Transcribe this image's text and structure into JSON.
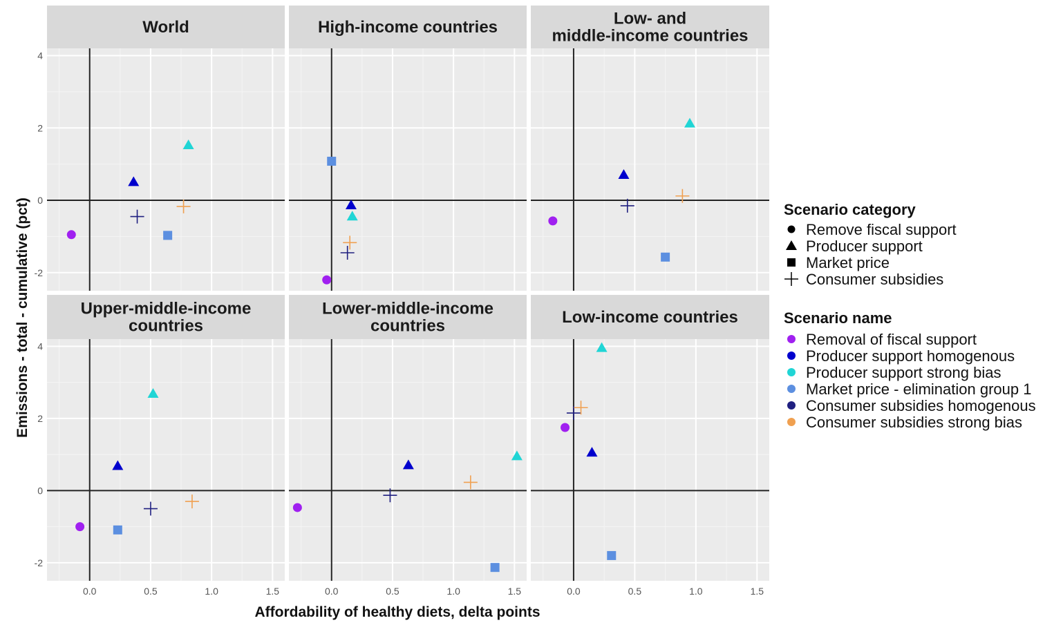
{
  "chart_data": {
    "type": "scatter",
    "xlabel": "Affordability of healthy diets, delta points",
    "ylabel": "Emissions - total - cumulative (pct)",
    "xlim": [
      -0.35,
      1.6
    ],
    "ylim": [
      -2.5,
      4.2
    ],
    "x_ticks": [
      "0.0",
      "0.5",
      "1.0",
      "1.5"
    ],
    "y_ticks": [
      "4",
      "2",
      "0",
      "-2"
    ],
    "grid": true,
    "legend_position": "right",
    "legend": {
      "category_title": "Scenario category",
      "categories": [
        {
          "label": "Remove fiscal support",
          "shape": "circle"
        },
        {
          "label": "Producer support",
          "shape": "triangle"
        },
        {
          "label": "Market price",
          "shape": "square"
        },
        {
          "label": "Consumer subsidies",
          "shape": "plus"
        }
      ],
      "name_title": "Scenario name",
      "names": [
        {
          "label": "Removal of fiscal support",
          "color": "#a020f0"
        },
        {
          "label": "Producer support homogenous",
          "color": "#0000cd"
        },
        {
          "label": "Producer support strong bias",
          "color": "#20d5d5"
        },
        {
          "label": "Market price - elimination group 1",
          "color": "#5c8fe0"
        },
        {
          "label": "Consumer subsidies homogenous",
          "color": "#1f1f80"
        },
        {
          "label": "Consumer subsidies strong bias",
          "color": "#f0a050"
        }
      ]
    },
    "panels": [
      {
        "title_lines": [
          "World"
        ],
        "points": [
          {
            "s": 0,
            "x": -0.15,
            "y": -0.95
          },
          {
            "s": 1,
            "x": 0.36,
            "y": 0.5
          },
          {
            "s": 2,
            "x": 0.81,
            "y": 1.52
          },
          {
            "s": 3,
            "x": 0.64,
            "y": -0.97
          },
          {
            "s": 4,
            "x": 0.39,
            "y": -0.45
          },
          {
            "s": 5,
            "x": 0.77,
            "y": -0.17
          }
        ]
      },
      {
        "title_lines": [
          "High-income countries"
        ],
        "points": [
          {
            "s": 0,
            "x": -0.04,
            "y": -2.2
          },
          {
            "s": 1,
            "x": 0.16,
            "y": -0.14
          },
          {
            "s": 2,
            "x": 0.17,
            "y": -0.45
          },
          {
            "s": 3,
            "x": 0.0,
            "y": 1.08
          },
          {
            "s": 4,
            "x": 0.13,
            "y": -1.45
          },
          {
            "s": 5,
            "x": 0.15,
            "y": -1.17
          }
        ]
      },
      {
        "title_lines": [
          "Low- and",
          "middle-income countries"
        ],
        "points": [
          {
            "s": 0,
            "x": -0.17,
            "y": -0.57
          },
          {
            "s": 1,
            "x": 0.41,
            "y": 0.7
          },
          {
            "s": 2,
            "x": 0.95,
            "y": 2.12
          },
          {
            "s": 3,
            "x": 0.75,
            "y": -1.57
          },
          {
            "s": 4,
            "x": 0.44,
            "y": -0.15
          },
          {
            "s": 5,
            "x": 0.89,
            "y": 0.12
          }
        ]
      },
      {
        "title_lines": [
          "Upper-middle-income",
          "countries"
        ],
        "points": [
          {
            "s": 0,
            "x": -0.08,
            "y": -1.0
          },
          {
            "s": 1,
            "x": 0.23,
            "y": 0.68
          },
          {
            "s": 2,
            "x": 0.52,
            "y": 2.68
          },
          {
            "s": 3,
            "x": 0.23,
            "y": -1.09
          },
          {
            "s": 4,
            "x": 0.5,
            "y": -0.5
          },
          {
            "s": 5,
            "x": 0.84,
            "y": -0.3
          }
        ]
      },
      {
        "title_lines": [
          "Lower-middle-income",
          "countries"
        ],
        "points": [
          {
            "s": 0,
            "x": -0.28,
            "y": -0.47
          },
          {
            "s": 1,
            "x": 0.63,
            "y": 0.7
          },
          {
            "s": 2,
            "x": 1.52,
            "y": 0.95
          },
          {
            "s": 3,
            "x": 1.34,
            "y": -2.13
          },
          {
            "s": 4,
            "x": 0.48,
            "y": -0.13
          },
          {
            "s": 5,
            "x": 1.14,
            "y": 0.23
          }
        ]
      },
      {
        "title_lines": [
          "Low-income countries"
        ],
        "points": [
          {
            "s": 0,
            "x": -0.07,
            "y": 1.75
          },
          {
            "s": 1,
            "x": 0.15,
            "y": 1.05
          },
          {
            "s": 2,
            "x": 0.23,
            "y": 3.95
          },
          {
            "s": 3,
            "x": 0.31,
            "y": -1.8
          },
          {
            "s": 4,
            "x": 0.0,
            "y": 2.15
          },
          {
            "s": 5,
            "x": 0.06,
            "y": 2.3
          }
        ]
      }
    ]
  }
}
